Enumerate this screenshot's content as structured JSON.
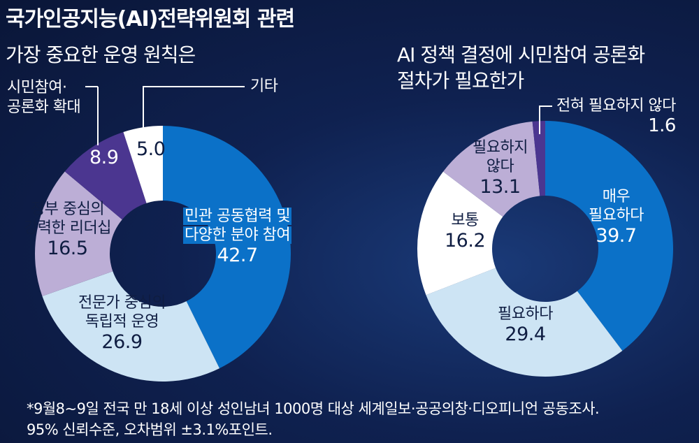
{
  "header": {
    "title": "국가인공지능(AI)전략위원회 관련"
  },
  "chart_data": [
    {
      "type": "pie",
      "title": "가장 중요한 운영 원칙은",
      "categories": [
        "민관 공동협력 및 다양한 분야 참여",
        "전문가 중심의 독립적 운영",
        "정부 중심의 강력한 리더십",
        "시민참여·공론화 확대",
        "기타"
      ],
      "values": [
        42.7,
        26.9,
        16.5,
        8.9,
        5.0
      ],
      "colors": [
        "#0b71c8",
        "#cde4f4",
        "#bcaed6",
        "#4b3690",
        "#ffffff"
      ],
      "labels": {
        "s0_line1": "민관 공동협력 및",
        "s0_line2": "다양한 분야 참여",
        "s0_value": "42.7",
        "s1_line1": "전문가 중심의",
        "s1_line2": "독립적 운영",
        "s1_value": "26.9",
        "s2_line1": "정부 중심의",
        "s2_line2": "강력한 리더십",
        "s2_value": "16.5",
        "s3_line1": "시민참여·",
        "s3_line2": "공론화 확대",
        "s3_value": "8.9",
        "s4_label": "기타",
        "s4_value": "5.0"
      }
    },
    {
      "type": "pie",
      "title_line1": "AI 정책 결정에 시민참여 공론화",
      "title_line2": "절차가 필요한가",
      "categories": [
        "매우 필요하다",
        "필요하다",
        "보통",
        "필요하지 않다",
        "전혀 필요하지 않다"
      ],
      "values": [
        39.7,
        29.4,
        16.2,
        13.1,
        1.6
      ],
      "colors": [
        "#0b71c8",
        "#cde4f4",
        "#ffffff",
        "#bcaed6",
        "#4b3690"
      ],
      "labels": {
        "s0_line1": "매우",
        "s0_line2": "필요하다",
        "s0_value": "39.7",
        "s1_line1": "필요하다",
        "s1_value": "29.4",
        "s2_line1": "보통",
        "s2_value": "16.2",
        "s3_line1": "필요하지",
        "s3_line2": "않다",
        "s3_value": "13.1",
        "s4_label": "전혀 필요하지 않다",
        "s4_value": "1.6"
      }
    }
  ],
  "footnote": {
    "line1": "*9월8∼9일 전국 만 18세 이상 성인남녀 1000명 대상 세계일보·공공의창·디오피니언 공동조사.",
    "line2": "95% 신뢰수준, 오차범위 ±3.1%포인트."
  }
}
